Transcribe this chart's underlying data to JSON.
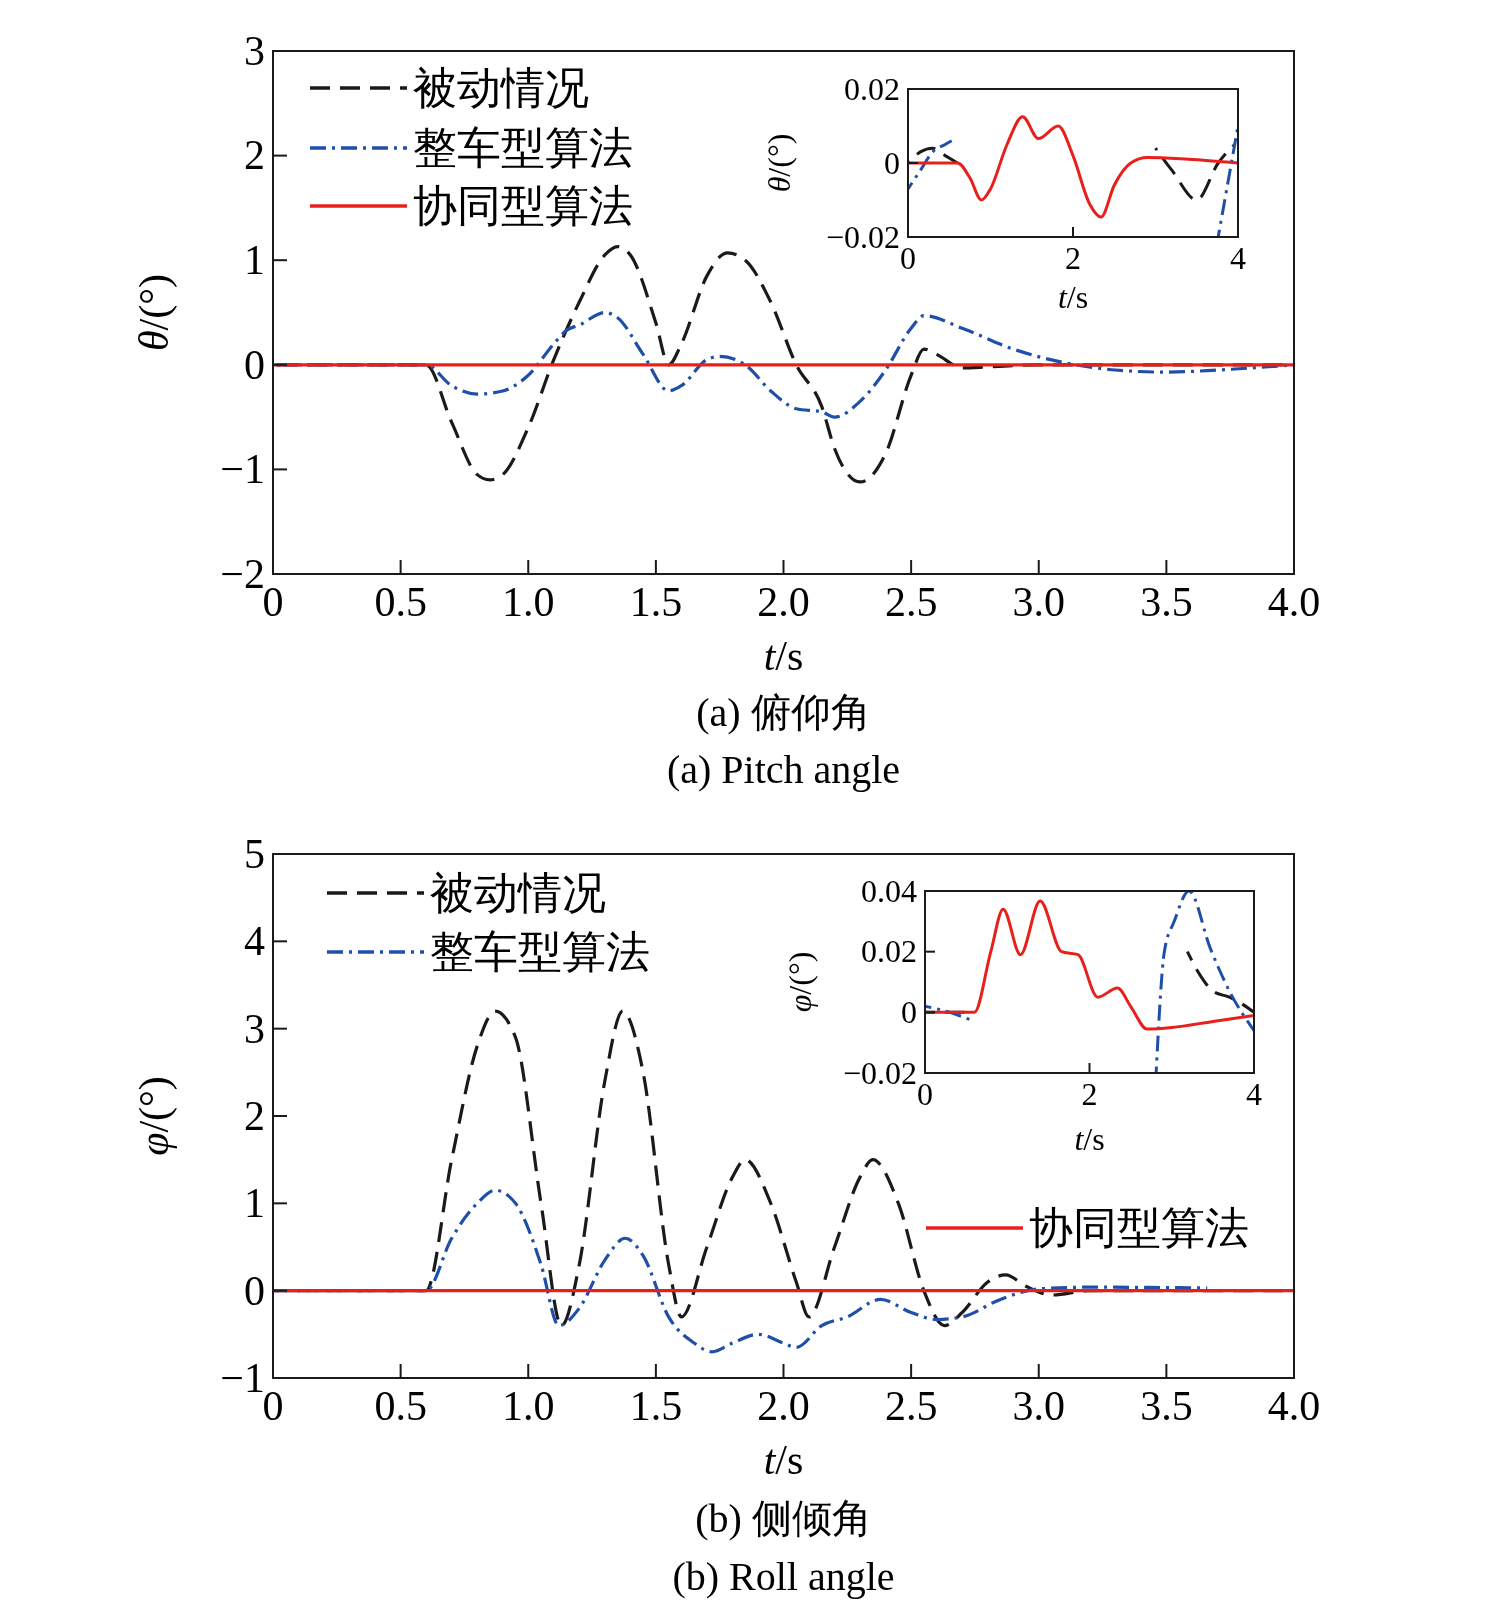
{
  "chart_data": [
    {
      "type": "line",
      "xlabel": "t/s",
      "ylabel": "θ/(°)",
      "xlim": [
        0,
        4
      ],
      "ylim": [
        -2,
        3
      ],
      "xticks": [
        0,
        0.5,
        {
          "value": 1,
          "label": "1.0"
        },
        1.5,
        {
          "value": 2,
          "label": "2.0"
        },
        2.5,
        {
          "value": 3,
          "label": "3.0"
        },
        3.5,
        {
          "value": 4,
          "label": "4.0"
        }
      ],
      "yticks": [
        {
          "value": -2,
          "label": "−2"
        },
        {
          "value": -1,
          "label": "−1"
        },
        0,
        1,
        2,
        3
      ],
      "legend": "top left",
      "grid": false,
      "marker": "none",
      "annotations": [
        "(a) 俯仰角",
        "(a) Pitch angle"
      ],
      "series": [
        {
          "name": "被动情况",
          "color": "#1a1a1a",
          "line_style": "dashed",
          "x": [
            0,
            0.6,
            0.7,
            0.8,
            0.85,
            0.9,
            1.0,
            1.1,
            1.2,
            1.3,
            1.35,
            1.4,
            1.5,
            1.55,
            1.6,
            1.7,
            1.78,
            1.85,
            1.95,
            2.05,
            2.15,
            2.2,
            2.3,
            2.4,
            2.5,
            2.55,
            2.6,
            2.7,
            2.8,
            3.0,
            4.0
          ],
          "values": [
            0,
            0,
            -0.55,
            -1.05,
            -1.1,
            -1.05,
            -0.6,
            0.05,
            0.6,
            1.05,
            1.13,
            1.05,
            0.4,
            0,
            0.2,
            0.85,
            1.07,
            1.0,
            0.6,
            0,
            -0.4,
            -0.8,
            -1.12,
            -0.85,
            -0.1,
            0.15,
            0.1,
            -0.03,
            -0.02,
            0,
            0
          ]
        },
        {
          "name": "整车型算法",
          "color": "#1f4fa8",
          "line_style": "dashdot",
          "x": [
            0,
            0.6,
            0.7,
            0.8,
            0.9,
            1.0,
            1.1,
            1.15,
            1.2,
            1.3,
            1.35,
            1.45,
            1.55,
            1.6,
            1.7,
            1.75,
            1.85,
            1.95,
            2.05,
            2.15,
            2.2,
            2.3,
            2.4,
            2.5,
            2.55,
            2.7,
            2.9,
            3.1,
            3.3,
            3.5,
            3.7,
            4.0
          ],
          "values": [
            0,
            0,
            -0.2,
            -0.28,
            -0.25,
            -0.1,
            0.2,
            0.33,
            0.38,
            0.5,
            0.45,
            0.1,
            -0.25,
            -0.2,
            0.05,
            0.08,
            0,
            -0.25,
            -0.42,
            -0.45,
            -0.5,
            -0.35,
            -0.05,
            0.35,
            0.47,
            0.35,
            0.15,
            0.02,
            -0.05,
            -0.07,
            -0.05,
            0
          ]
        },
        {
          "name": "协同型算法",
          "color": "#e8201c",
          "line_style": "solid",
          "x": [
            0,
            4.0
          ],
          "values": [
            0,
            0
          ]
        }
      ]
    },
    {
      "type": "line",
      "xlabel": "t/s",
      "ylabel": "θ/(°)",
      "xlim": [
        0,
        4
      ],
      "ylim": [
        -0.02,
        0.02
      ],
      "xticks": [
        0,
        2,
        4
      ],
      "yticks": [
        {
          "value": -0.02,
          "label": "−0.02"
        },
        0,
        0.02
      ],
      "legend": false,
      "grid": false,
      "marker": "none",
      "series": [
        {
          "color": "#1a1a1a",
          "line_style": "dashed",
          "x": [
            0,
            0.15,
            0.3,
            0.45,
            0.6,
            0.62,
            2.87,
            3.0,
            3.2,
            3.5,
            3.76,
            3.96
          ],
          "values": [
            0,
            0.003,
            0.004,
            0.002,
            0,
            null,
            null,
            0.004,
            -0.002,
            -0.01,
            0,
            0.005
          ]
        },
        {
          "color": "#1f4fa8",
          "line_style": "dashdot",
          "x": [
            0,
            0.15,
            0.3,
            0.45,
            0.53,
            0.58,
            3.7,
            3.76,
            3.88,
            4.0
          ],
          "values": [
            -0.007,
            -0.002,
            0.003,
            0.005,
            0.006,
            null,
            null,
            -0.02,
            -0.005,
            0.01
          ]
        },
        {
          "color": "#e8201c",
          "line_style": "solid",
          "x": [
            0,
            0.6,
            0.75,
            0.89,
            1.0,
            1.2,
            1.39,
            1.58,
            1.82,
            2.0,
            2.2,
            2.34,
            2.5,
            2.7,
            2.9,
            3.4,
            4.0
          ],
          "values": [
            0,
            0,
            -0.004,
            -0.01,
            -0.007,
            0.005,
            0.0125,
            0.0066,
            0.01,
            0.002,
            -0.011,
            -0.0146,
            -0.006,
            0,
            0.0015,
            0.001,
            0
          ]
        }
      ]
    },
    {
      "type": "line",
      "xlabel": "t/s",
      "ylabel": "φ/(°)",
      "xlim": [
        0,
        4
      ],
      "ylim": [
        -1,
        5
      ],
      "xticks": [
        0,
        0.5,
        {
          "value": 1,
          "label": "1.0"
        },
        1.5,
        {
          "value": 2,
          "label": "2.0"
        },
        2.5,
        {
          "value": 3,
          "label": "3.0"
        },
        3.5,
        {
          "value": 4,
          "label": "4.0"
        }
      ],
      "yticks": [
        {
          "value": -1,
          "label": "−1"
        },
        0,
        1,
        2,
        3,
        4,
        5
      ],
      "legend": "top left",
      "grid": false,
      "marker": "none",
      "annotations": [
        "(b) 侧倾角",
        "(b) Roll angle"
      ],
      "series": [
        {
          "name": "被动情况",
          "color": "#1a1a1a",
          "line_style": "dashed",
          "x": [
            0,
            0.6,
            0.7,
            0.8,
            0.87,
            0.95,
            1.05,
            1.13,
            1.2,
            1.3,
            1.37,
            1.45,
            1.55,
            1.6,
            1.7,
            1.8,
            1.85,
            1.95,
            2.05,
            2.1,
            2.2,
            2.3,
            2.35,
            2.45,
            2.55,
            2.63,
            2.7,
            2.8,
            2.87,
            2.95,
            3.05,
            3.2,
            4.0
          ],
          "values": [
            0,
            0,
            1.5,
            2.8,
            3.2,
            2.9,
            1.0,
            -0.4,
            0.3,
            2.4,
            3.2,
            2.5,
            0.3,
            -0.3,
            0.5,
            1.3,
            1.5,
            1.0,
            0.1,
            -0.3,
            0.5,
            1.3,
            1.5,
            1.0,
            0,
            -0.4,
            -0.25,
            0.1,
            0.18,
            0.05,
            -0.05,
            0,
            0
          ]
        },
        {
          "name": "整车型算法",
          "color": "#1f4fa8",
          "line_style": "dashdot",
          "x": [
            0,
            0.6,
            0.7,
            0.8,
            0.87,
            0.95,
            1.05,
            1.12,
            1.2,
            1.3,
            1.38,
            1.45,
            1.55,
            1.65,
            1.72,
            1.8,
            1.9,
            2.0,
            2.05,
            2.15,
            2.25,
            2.38,
            2.5,
            2.6,
            2.7,
            2.85,
            3.0,
            3.2,
            3.66
          ],
          "values": [
            0,
            0,
            0.6,
            1.0,
            1.15,
            1.0,
            0.3,
            -0.4,
            -0.2,
            0.35,
            0.6,
            0.4,
            -0.3,
            -0.6,
            -0.7,
            -0.6,
            -0.5,
            -0.6,
            -0.65,
            -0.4,
            -0.3,
            -0.1,
            -0.25,
            -0.33,
            -0.3,
            -0.1,
            0.02,
            0.04,
            0.03
          ]
        },
        {
          "name": "协同型算法",
          "color": "#e8201c",
          "line_style": "solid",
          "x": [
            0,
            4.0
          ],
          "values": [
            0,
            0
          ]
        }
      ]
    },
    {
      "type": "line",
      "xlabel": "t/s",
      "ylabel": "φ/(°)",
      "xlim": [
        0,
        4
      ],
      "ylim": [
        -0.02,
        0.04
      ],
      "xticks": [
        0,
        2,
        4
      ],
      "yticks": [
        {
          "value": -0.02,
          "label": "−0.02"
        },
        0,
        0.02,
        0.04
      ],
      "legend": false,
      "grid": false,
      "marker": "none",
      "series": [
        {
          "color": "#1a1a1a",
          "line_style": "dashed",
          "x": [
            0,
            0.3,
            0.58,
            0.62,
            3.15,
            3.19,
            3.35,
            3.5,
            3.7,
            3.84,
            4.0
          ],
          "values": [
            0,
            0,
            0,
            null,
            null,
            0.02,
            0.012,
            0.007,
            0.005,
            0.003,
            0
          ]
        },
        {
          "color": "#1f4fa8",
          "line_style": "dashdot",
          "x": [
            0,
            0.3,
            0.6,
            0.62,
            2.8,
            2.81,
            2.91,
            3.03,
            3.21,
            3.47,
            3.72,
            4.0
          ],
          "values": [
            0.002,
            0,
            -0.003,
            null,
            null,
            -0.02,
            0.02,
            0.03,
            0.04,
            0.021,
            0.006,
            -0.006
          ]
        },
        {
          "color": "#e8201c",
          "line_style": "solid",
          "x": [
            0,
            0.6,
            0.8,
            0.95,
            1.16,
            1.4,
            1.66,
            1.86,
            2.1,
            2.34,
            2.5,
            2.7,
            3.0,
            3.5,
            4.0
          ],
          "values": [
            0,
            0,
            0.02,
            0.034,
            0.019,
            0.0367,
            0.02,
            0.019,
            0.005,
            0.008,
            0.002,
            -0.0055,
            -0.005,
            -0.003,
            -0.001
          ]
        }
      ]
    }
  ]
}
